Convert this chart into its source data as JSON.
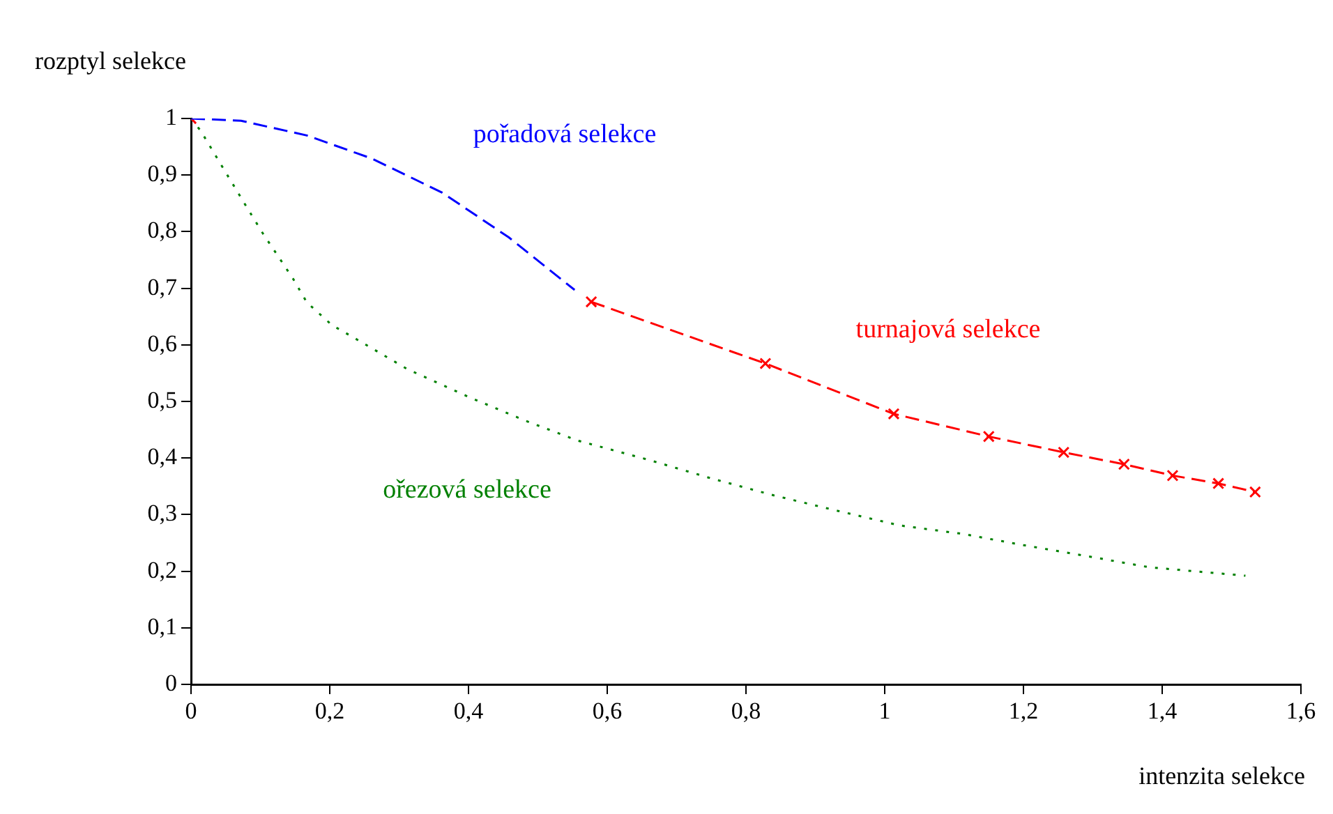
{
  "chart_data": {
    "type": "line",
    "xlabel": "intenzita selekce",
    "ylabel": "rozptyl selekce",
    "xlim": [
      0,
      1.6
    ],
    "ylim": [
      0,
      1
    ],
    "xticks": [
      0,
      {
        "value": 0.2,
        "label": "0,2"
      },
      {
        "value": 0.4,
        "label": "0,4"
      },
      {
        "value": 0.6,
        "label": "0,6"
      },
      {
        "value": 0.8,
        "label": "0,8"
      },
      1,
      {
        "value": 1.2,
        "label": "1,2"
      },
      {
        "value": 1.4,
        "label": "1,4"
      },
      {
        "value": 1.6,
        "label": "1,6"
      }
    ],
    "yticks": [
      0,
      {
        "value": 0.1,
        "label": "0,1"
      },
      {
        "value": 0.2,
        "label": "0,2"
      },
      {
        "value": 0.3,
        "label": "0,3"
      },
      {
        "value": 0.4,
        "label": "0,4"
      },
      {
        "value": 0.5,
        "label": "0,5"
      },
      {
        "value": 0.6,
        "label": "0,6"
      },
      {
        "value": 0.7,
        "label": "0,7"
      },
      {
        "value": 0.8,
        "label": "0,8"
      },
      {
        "value": 0.9,
        "label": "0,9"
      },
      1
    ],
    "grid": false,
    "legend": false,
    "series": [
      {
        "name": "pořadová selekce",
        "color": "#0000ff",
        "line_style": "dashed",
        "marker": "none",
        "x": [
          0,
          0.072,
          0.167,
          0.261,
          0.362,
          0.458,
          0.553
        ],
        "values": [
          1,
          0.996,
          0.97,
          0.929,
          0.869,
          0.79,
          0.697
        ]
      },
      {
        "name": "turnajová selekce",
        "color": "#ff0000",
        "line_style": "dashed",
        "marker": "cross",
        "x": [
          0.577,
          0.828,
          1.013,
          1.15,
          1.258,
          1.345,
          1.415,
          1.481,
          1.534
        ],
        "values": [
          0.676,
          0.567,
          0.478,
          0.438,
          0.41,
          0.389,
          0.369,
          0.355,
          0.34
        ]
      },
      {
        "type": "scatter",
        "color": "#ff0000",
        "marker": "cross",
        "x": [
          0
        ],
        "values": [
          1
        ]
      },
      {
        "name": "ořezová selekce",
        "color": "#008000",
        "line_style": "dotted",
        "marker": "none",
        "x": [
          0,
          0.014,
          0.042,
          0.076,
          0.103,
          0.147,
          0.167,
          0.203,
          0.237,
          0.312,
          0.402,
          0.482,
          0.557,
          0.659,
          0.75,
          0.84,
          0.931,
          1.021,
          1.112,
          1.2,
          1.29,
          1.381,
          1.52
        ],
        "values": [
          1,
          0.978,
          0.921,
          0.852,
          0.798,
          0.717,
          0.675,
          0.635,
          0.611,
          0.557,
          0.507,
          0.466,
          0.431,
          0.397,
          0.364,
          0.334,
          0.307,
          0.281,
          0.266,
          0.246,
          0.227,
          0.207,
          0.192
        ]
      }
    ]
  }
}
